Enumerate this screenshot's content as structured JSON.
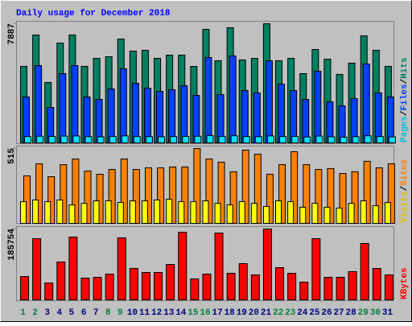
{
  "chart_data": [
    {
      "type": "bar",
      "title": "Daily usage for December 2018",
      "ylim": [
        0,
        7887
      ],
      "yticks": [
        7887
      ],
      "separator": "/",
      "series": [
        {
          "name": "Hits",
          "color": "#008060",
          "label_color": "#008060",
          "values": [
            5064,
            7142,
            3998,
            6609,
            7142,
            5064,
            5597,
            5703,
            6876,
            6076,
            6130,
            5597,
            5810,
            5810,
            5064,
            7515,
            5437,
            7622,
            5490,
            5597,
            7887,
            5437,
            5597,
            4584,
            6183,
            5543,
            4531,
            5277,
            7089,
            6130,
            5064
          ]
        },
        {
          "name": "Files",
          "color": "#0040ff",
          "label_color": "#0040ff",
          "values": [
            3038,
            5117,
            2345,
            4584,
            5117,
            3038,
            2878,
            3571,
            4904,
            3944,
            3624,
            3411,
            3518,
            3784,
            3145,
            5650,
            3198,
            5756,
            3464,
            3305,
            5437,
            3891,
            3464,
            2878,
            4744,
            2718,
            2452,
            2932,
            5223,
            3305,
            3038
          ]
        },
        {
          "name": "Pages",
          "color": "#00e0ff",
          "label_color": "#00c0e0",
          "values": [
            420,
            440,
            430,
            450,
            460,
            410,
            400,
            430,
            470,
            420,
            410,
            400,
            420,
            430,
            440,
            480,
            430,
            470,
            420,
            410,
            460,
            420,
            430,
            390,
            450,
            400,
            380,
            410,
            470,
            420,
            400
          ]
        }
      ]
    },
    {
      "type": "bar",
      "ylim": [
        0,
        515
      ],
      "yticks": [
        515
      ],
      "separator": "/",
      "series": [
        {
          "name": "Sites",
          "color": "#ff8000",
          "label_color": "#ff8000",
          "values": [
            327,
            410,
            321,
            404,
            443,
            360,
            338,
            371,
            443,
            371,
            382,
            382,
            388,
            388,
            515,
            443,
            421,
            355,
            504,
            476,
            338,
            404,
            493,
            404,
            371,
            377,
            343,
            355,
            427,
            382,
            410
          ]
        },
        {
          "name": "Visits",
          "color": "#ffff00",
          "label_color": "#e0c000",
          "values": [
            150,
            161,
            150,
            161,
            127,
            138,
            155,
            155,
            144,
            155,
            155,
            161,
            166,
            150,
            150,
            155,
            138,
            127,
            150,
            138,
            116,
            155,
            150,
            111,
            138,
            111,
            105,
            138,
            155,
            122,
            144
          ]
        }
      ]
    },
    {
      "type": "bar",
      "ylim": [
        0,
        185754
      ],
      "yticks": [
        185754
      ],
      "categories": [
        "1",
        "2",
        "3",
        "4",
        "5",
        "6",
        "7",
        "8",
        "9",
        "10",
        "11",
        "12",
        "13",
        "14",
        "15",
        "16",
        "17",
        "18",
        "19",
        "20",
        "21",
        "22",
        "23",
        "24",
        "25",
        "26",
        "27",
        "28",
        "29",
        "30",
        "31"
      ],
      "category_colors": [
        "#008040",
        "#008040",
        "#000080",
        "#000080",
        "#000080",
        "#000080",
        "#000080",
        "#008040",
        "#008040",
        "#000080",
        "#000080",
        "#000080",
        "#000080",
        "#000080",
        "#008040",
        "#008040",
        "#000080",
        "#000080",
        "#000080",
        "#000080",
        "#000080",
        "#008040",
        "#008040",
        "#000080",
        "#000080",
        "#000080",
        "#000080",
        "#000080",
        "#008040",
        "#008040",
        "#000080"
      ],
      "series": [
        {
          "name": "KBytes",
          "color": "#ff0000",
          "label_color": "#ff0000",
          "values": [
            61219,
            160436,
            44331,
            99217,
            164658,
            56997,
            59108,
            67552,
            162547,
            82329,
            71774,
            71774,
            92884,
            177324,
            54886,
            67552,
            175213,
            69663,
            94995,
            65441,
            185754,
            84440,
            69663,
            46442,
            160436,
            59108,
            59108,
            73885,
            147770,
            82329,
            65441
          ]
        }
      ]
    }
  ]
}
